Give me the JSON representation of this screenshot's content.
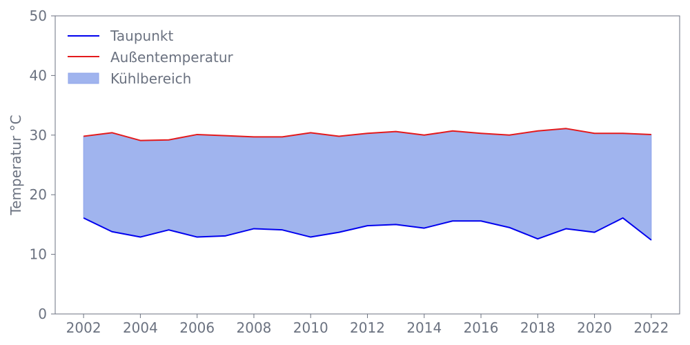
{
  "chart_data": {
    "type": "area",
    "title": "",
    "xlabel": "",
    "ylabel": "Temperatur °C",
    "x": [
      2002,
      2003,
      2004,
      2005,
      2006,
      2007,
      2008,
      2009,
      2010,
      2011,
      2012,
      2013,
      2014,
      2015,
      2016,
      2017,
      2018,
      2019,
      2020,
      2021,
      2022
    ],
    "series": [
      {
        "name": "Taupunkt",
        "type": "line",
        "color": "#0000ee",
        "values": [
          16.1,
          13.8,
          12.9,
          14.1,
          12.9,
          13.1,
          14.3,
          14.1,
          12.9,
          13.7,
          14.8,
          15.0,
          14.4,
          15.6,
          15.6,
          14.5,
          12.6,
          14.3,
          13.7,
          16.1,
          12.4
        ]
      },
      {
        "name": "Außentemperatur",
        "type": "line",
        "color": "#e31a1c",
        "values": [
          29.8,
          30.4,
          29.1,
          29.2,
          30.1,
          29.9,
          29.7,
          29.7,
          30.4,
          29.8,
          30.3,
          30.6,
          30.0,
          30.7,
          30.3,
          30.0,
          30.7,
          31.1,
          30.3,
          30.3,
          30.1
        ]
      }
    ],
    "fill": {
      "name": "Kühlbereich",
      "between": [
        "Taupunkt",
        "Außentemperatur"
      ],
      "color": "#a0b4ee"
    },
    "xlim": [
      2001,
      2023
    ],
    "ylim": [
      0,
      50
    ],
    "xticks": [
      2002,
      2004,
      2006,
      2008,
      2010,
      2012,
      2014,
      2016,
      2018,
      2020,
      2022
    ],
    "yticks": [
      0,
      10,
      20,
      30,
      40,
      50
    ],
    "grid": false,
    "legend_position": "top-left"
  }
}
